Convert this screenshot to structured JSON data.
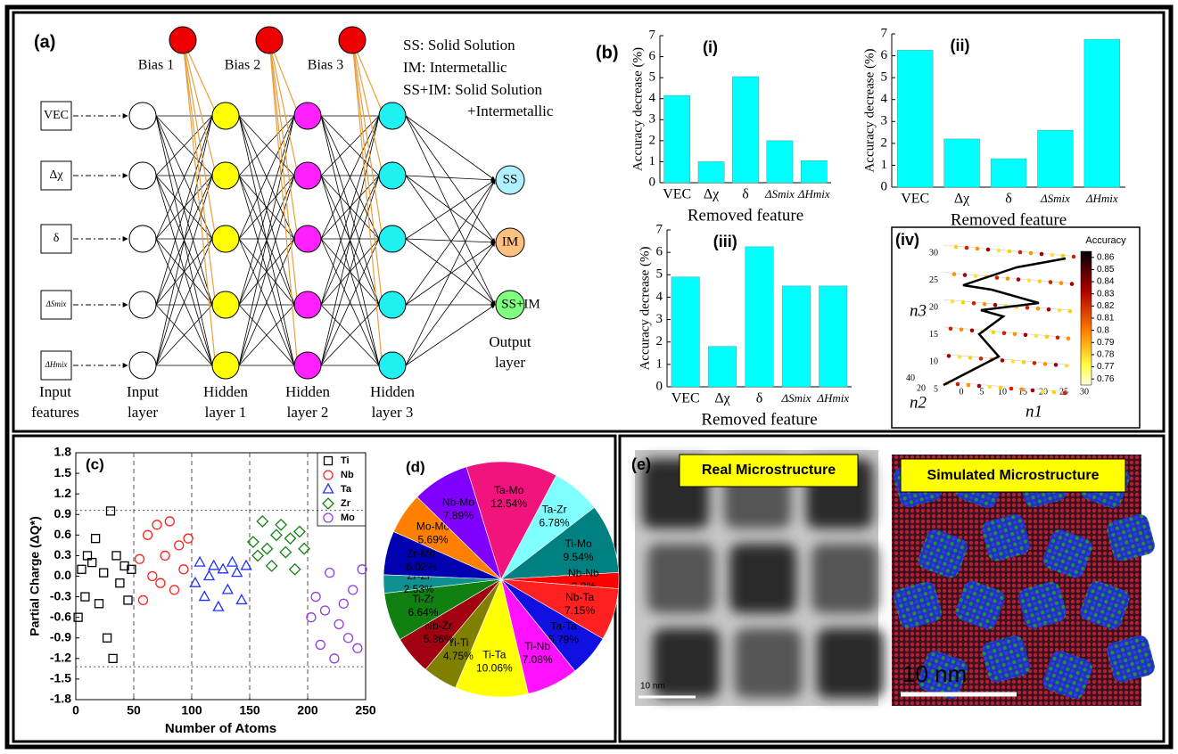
{
  "panels": [
    "(a)",
    "(b)",
    "(c)",
    "(d)"
  ],
  "network": {
    "inputs": [
      "VEC",
      "Δχ",
      "δ",
      "ΔSmix",
      "ΔHmix"
    ],
    "biases": [
      "Bias 1",
      "Bias 2",
      "Bias 3"
    ],
    "outputs": [
      "SS",
      "IM",
      "SS+IM"
    ],
    "layer_labels": [
      [
        "Input",
        "features"
      ],
      [
        "Input",
        "layer"
      ],
      [
        "Hidden",
        "layer 1"
      ],
      [
        "Hidden",
        "layer 2"
      ],
      [
        "Hidden",
        "layer 3"
      ],
      [
        "Output",
        "layer"
      ]
    ],
    "legend": [
      "SS: Solid Solution",
      "IM: Intermetallic",
      "SS+IM: Solid Solution",
      "+Intermetallic"
    ]
  },
  "chart_data": [
    {
      "type": "bar",
      "title": "(i)",
      "categories": [
        "VEC",
        "Δχ",
        "δ",
        "ΔSmix",
        "ΔHmix"
      ],
      "values": [
        4.15,
        1.0,
        5.05,
        2.0,
        1.05
      ],
      "color": "#00ffff",
      "ylim": [
        0,
        7
      ],
      "yticks": [
        0,
        1,
        2,
        3,
        4,
        5,
        6,
        7
      ],
      "y_label": "Accuracy decrease (%)",
      "x_label": "Removed feature"
    },
    {
      "type": "bar",
      "title": "(ii)",
      "categories": [
        "VEC",
        "Δχ",
        "δ",
        "ΔSmix",
        "ΔHmix"
      ],
      "values": [
        6.25,
        2.2,
        1.3,
        2.6,
        6.75
      ],
      "color": "#00ffff",
      "ylim": [
        0,
        7
      ],
      "yticks": [
        0,
        1,
        2,
        3,
        4,
        5,
        6,
        7
      ],
      "y_label": "Accuracy decrease (%)",
      "x_label": "Removed feature"
    },
    {
      "type": "bar",
      "title": "(iii)",
      "categories": [
        "VEC",
        "Δχ",
        "δ",
        "ΔSmix",
        "ΔHmix"
      ],
      "values": [
        4.9,
        1.8,
        6.25,
        4.5,
        4.5
      ],
      "color": "#00ffff",
      "ylim": [
        0,
        7
      ],
      "yticks": [
        0,
        1,
        2,
        3,
        4,
        5,
        6,
        7
      ],
      "y_label": "Accuracy decrease (%)",
      "x_label": "Removed feature"
    },
    {
      "type": "scatter3d",
      "title": "(iv)",
      "x_label": "n1",
      "y_label": "n2",
      "z_label": "n3",
      "xticks": [
        0,
        5,
        10,
        15,
        20,
        25,
        30
      ],
      "yticks": [
        20,
        40
      ],
      "zticks": [
        5,
        10,
        15,
        20,
        25,
        30
      ],
      "colorbar_title": "Accuracy",
      "colorbar_lim": [
        0.755,
        0.865
      ],
      "colorbar_ticks": [
        0.76,
        0.77,
        0.78,
        0.79,
        0.8,
        0.81,
        0.82,
        0.83,
        0.84,
        0.85,
        0.86
      ]
    },
    {
      "type": "scatter",
      "x_label": "Number of Atoms",
      "y_label": "Partial Charge (ΔQ*)",
      "xlim": [
        0,
        250
      ],
      "xticks": [
        0,
        50,
        100,
        150,
        200,
        250
      ],
      "ylim": [
        -1.8,
        1.8
      ],
      "yticks": [
        1.8,
        1.5,
        1.2,
        0.9,
        0.6,
        0.3,
        {
          "value": 0,
          "label": "0.0"
        },
        -0.3,
        -0.6,
        -0.9,
        -1.2,
        -1.5,
        -1.8
      ],
      "grid_x": true,
      "hlines": [
        0.96,
        -1.32
      ],
      "series": [
        {
          "name": "Ti",
          "color": "#000000",
          "marker": "square",
          "x": [
            2,
            5,
            8,
            10,
            14,
            17,
            20,
            24,
            27,
            30,
            32,
            35,
            38,
            42,
            45,
            48
          ],
          "values": [
            -0.6,
            0.1,
            -0.3,
            0.3,
            0.2,
            0.55,
            -0.4,
            0.05,
            -0.9,
            0.95,
            -1.2,
            0.3,
            -0.1,
            0.15,
            -0.35,
            0.1
          ]
        },
        {
          "name": "Nb",
          "color": "#ff2020",
          "marker": "circle",
          "x": [
            55,
            58,
            62,
            66,
            70,
            73,
            77,
            81,
            85,
            89,
            93,
            97
          ],
          "values": [
            0.25,
            -0.35,
            0.6,
            0.0,
            0.75,
            -0.1,
            0.3,
            0.8,
            -0.2,
            0.45,
            0.1,
            0.55
          ]
        },
        {
          "name": "Ta",
          "color": "#2030ff",
          "marker": "triangle",
          "x": [
            103,
            107,
            111,
            115,
            119,
            123,
            127,
            131,
            135,
            139,
            143,
            147
          ],
          "values": [
            -0.1,
            0.2,
            -0.3,
            0.0,
            0.15,
            -0.45,
            0.1,
            -0.2,
            0.2,
            0.05,
            -0.35,
            0.15
          ]
        },
        {
          "name": "Zr",
          "color": "#108010",
          "marker": "diamond",
          "x": [
            153,
            157,
            161,
            165,
            169,
            173,
            177,
            181,
            185,
            189,
            193,
            197
          ],
          "values": [
            0.5,
            0.3,
            0.8,
            0.4,
            0.15,
            0.6,
            0.75,
            0.35,
            0.55,
            0.1,
            0.65,
            0.4
          ]
        },
        {
          "name": "Mo",
          "color": "#9040e0",
          "marker": "circle",
          "x": [
            203,
            207,
            211,
            215,
            219,
            223,
            227,
            231,
            235,
            239,
            243,
            247
          ],
          "values": [
            -0.6,
            -0.3,
            -1.0,
            -0.5,
            0.05,
            -1.2,
            -0.7,
            -0.4,
            -0.9,
            -0.2,
            -1.05,
            0.1
          ]
        }
      ]
    },
    {
      "type": "pie",
      "categories": [
        "Ta-Mo",
        "Ta-Zr",
        "Ti-Mo",
        "Nb-Nb",
        "Nb-Ta",
        "Ta-Ta",
        "Ti-Nb",
        "Ti-Ta",
        "Ti-Ti",
        "Nb-Zr",
        "Ti-Zr",
        "Zr-Zr",
        "Zr-Mo",
        "Mo-Mo",
        "Nb-Mo"
      ],
      "values": [
        12.54,
        6.78,
        9.54,
        2.2,
        7.15,
        5.79,
        7.08,
        10.06,
        4.75,
        5.36,
        6.64,
        2.53,
        6.02,
        5.69,
        7.89
      ],
      "value_labels": [
        "12.54%",
        "6.78%",
        "9.54%",
        "2.2%",
        "7.15%",
        "5.79%",
        "7.08%",
        "10.06%",
        "4.75%",
        "5.36%",
        "6.64%",
        "2.53%",
        "6.02%",
        "5.69%",
        "7.89%"
      ],
      "colors": [
        "#f0147c",
        "#80ffff",
        "#008080",
        "#ff0000",
        "#ff2020",
        "#1010e0",
        "#ff10ff",
        "#ffff00",
        "#808000",
        "#a00010",
        "#108010",
        "#109090",
        "#0000b0",
        "#ff8000",
        "#8000ff"
      ]
    }
  ],
  "microstructure": {
    "panel": "(e)",
    "real": {
      "label": "Real Microstructure",
      "scale": "10 nm"
    },
    "simulated": {
      "label": "Simulated Microstructure",
      "scale": "10 nm"
    }
  }
}
